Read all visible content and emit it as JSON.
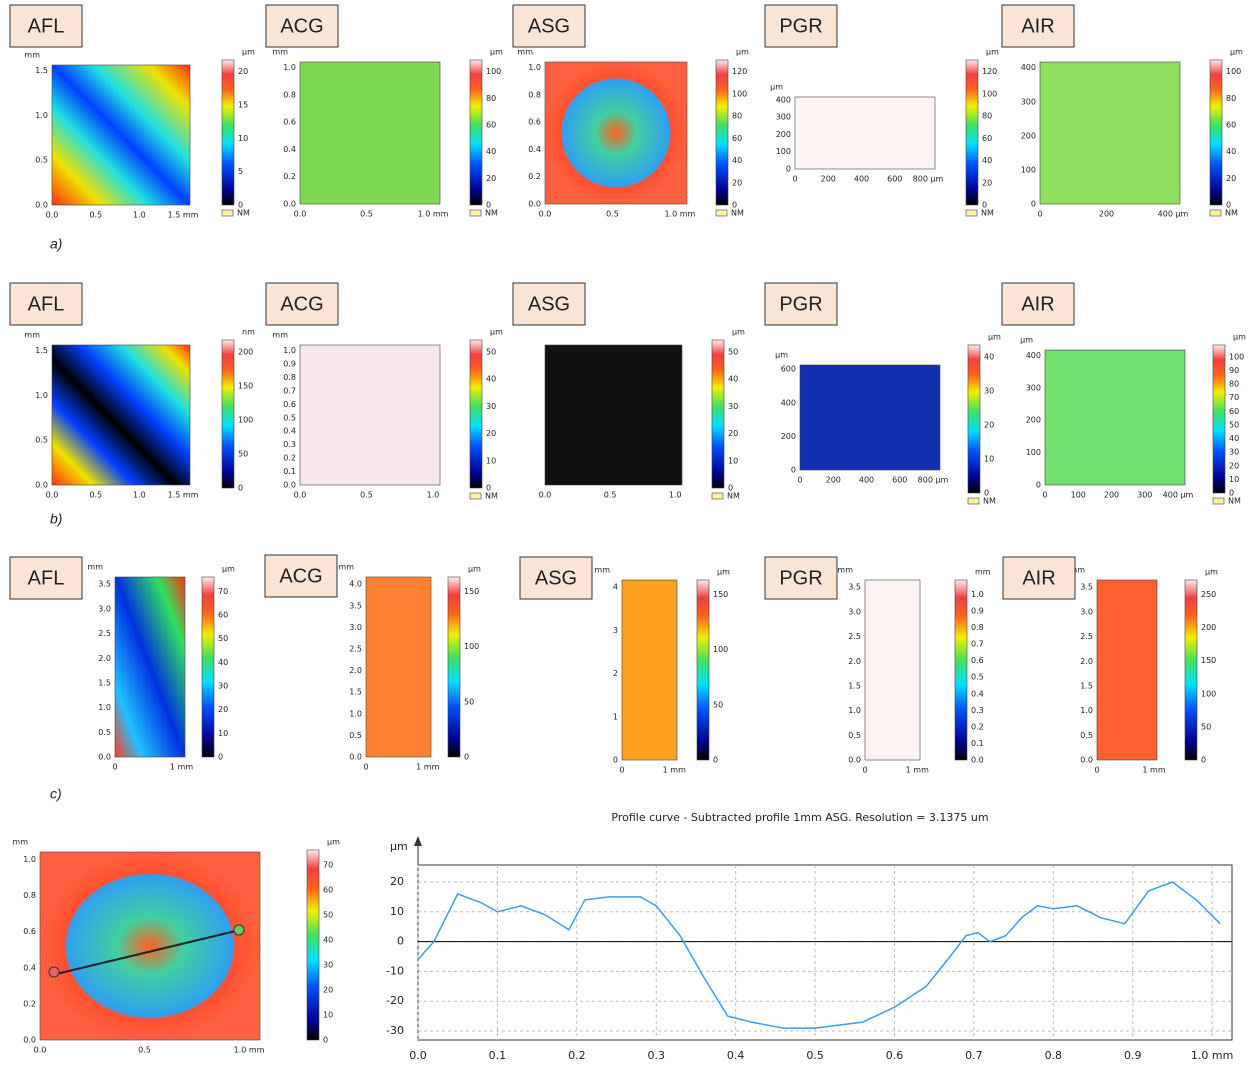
{
  "rows": [
    {
      "label": "a)",
      "panels": [
        {
          "name": "AFL",
          "y_unit": "mm",
          "yticks": [
            "0.0",
            "0.5",
            "1.0",
            "1.5"
          ],
          "xticks": [
            "0.0",
            "0.5",
            "1.0",
            "1.5 mm"
          ],
          "cbar_unit": "µm",
          "cbar_ticks": [
            "0",
            "5",
            "10",
            "15",
            "20"
          ],
          "nm": "NM"
        },
        {
          "name": "ACG",
          "y_unit": "mm",
          "yticks": [
            "0.0",
            "0.2",
            "0.4",
            "0.6",
            "0.8",
            "1.0"
          ],
          "xticks": [
            "0.0",
            "0.5",
            "1.0 mm"
          ],
          "cbar_unit": "µm",
          "cbar_ticks": [
            "0",
            "20",
            "40",
            "60",
            "80",
            "100"
          ],
          "nm": "NM"
        },
        {
          "name": "ASG",
          "y_unit": "mm",
          "yticks": [
            "0.0",
            "0.2",
            "0.4",
            "0.6",
            "0.8",
            "1.0"
          ],
          "xticks": [
            "0.0",
            "0.5",
            "1.0 mm"
          ],
          "cbar_unit": "µm",
          "cbar_ticks": [
            "0",
            "20",
            "40",
            "60",
            "80",
            "100",
            "120"
          ],
          "nm": "NM"
        },
        {
          "name": "PGR",
          "y_unit": "µm",
          "yticks": [
            "0",
            "100",
            "200",
            "300",
            "400"
          ],
          "xticks": [
            "0",
            "200",
            "400",
            "600",
            "800 µm"
          ],
          "cbar_unit": "µm",
          "cbar_ticks": [
            "0",
            "20",
            "40",
            "60",
            "80",
            "100",
            "120"
          ],
          "nm": "NM"
        },
        {
          "name": "AIR",
          "yticks": [
            "0",
            "100",
            "200",
            "300",
            "400"
          ],
          "xticks": [
            "0",
            "200",
            "400 µm"
          ],
          "cbar_unit": "µm",
          "cbar_ticks": [
            "0",
            "20",
            "40",
            "60",
            "80",
            "100"
          ],
          "nm": "NM"
        }
      ]
    },
    {
      "label": "b)",
      "panels": [
        {
          "name": "AFL",
          "y_unit": "mm",
          "yticks": [
            "0.0",
            "0.5",
            "1.0",
            "1.5"
          ],
          "xticks": [
            "0.0",
            "0.5",
            "1.0",
            "1.5 mm"
          ],
          "cbar_unit": "nm",
          "cbar_ticks": [
            "0",
            "50",
            "100",
            "150",
            "200"
          ]
        },
        {
          "name": "ACG",
          "y_unit": "mm",
          "yticks": [
            "0.0",
            "0.1",
            "0.2",
            "0.3",
            "0.4",
            "0.5",
            "0.6",
            "0.7",
            "0.8",
            "0.9",
            "1.0"
          ],
          "xticks": [
            "0.0",
            "0.5",
            "1.0"
          ],
          "cbar_unit": "µm",
          "cbar_ticks": [
            "0",
            "10",
            "20",
            "30",
            "40",
            "50"
          ],
          "nm": "NM"
        },
        {
          "name": "ASG",
          "yticks": [],
          "xticks": [
            "0.0",
            "0.5",
            "1.0"
          ],
          "cbar_unit": "µm",
          "cbar_ticks": [
            "0",
            "10",
            "20",
            "30",
            "40",
            "50"
          ],
          "nm": "NM"
        },
        {
          "name": "PGR",
          "y_unit": "µm",
          "yticks": [
            "0",
            "200",
            "400",
            "600"
          ],
          "xticks": [
            "0",
            "200",
            "400",
            "600",
            "800 µm"
          ],
          "cbar_unit": "µm",
          "cbar_ticks": [
            "0",
            "10",
            "20",
            "30",
            "40"
          ],
          "nm": "NM"
        },
        {
          "name": "AIR",
          "y_unit": "µm",
          "yticks": [
            "0",
            "100",
            "200",
            "300",
            "400"
          ],
          "xticks": [
            "0",
            "100",
            "200",
            "300",
            "400 µm"
          ],
          "cbar_unit": "µm",
          "cbar_ticks": [
            "0",
            "10",
            "20",
            "30",
            "40",
            "50",
            "60",
            "70",
            "80",
            "90",
            "100"
          ],
          "nm": "NM"
        }
      ]
    },
    {
      "label": "c)",
      "panels": [
        {
          "name": "AFL",
          "y_unit": "mm",
          "yticks": [
            "0.0",
            "0.5",
            "1.0",
            "1.5",
            "2.0",
            "2.5",
            "3.0",
            "3.5"
          ],
          "xticks": [
            "0",
            "1 mm"
          ],
          "cbar_unit": "µm",
          "cbar_ticks": [
            "0",
            "10",
            "20",
            "30",
            "40",
            "50",
            "60",
            "70"
          ]
        },
        {
          "name": "ACG",
          "y_unit": "mm",
          "yticks": [
            "0.0",
            "0.5",
            "1.0",
            "1.5",
            "2.0",
            "2.5",
            "3.0",
            "3.5",
            "4.0"
          ],
          "xticks": [
            "0",
            "1 mm"
          ],
          "cbar_unit": "µm",
          "cbar_ticks": [
            "0",
            "50",
            "100",
            "150"
          ]
        },
        {
          "name": "ASG",
          "y_unit": "mm",
          "yticks": [
            "0",
            "1",
            "2",
            "3",
            "4"
          ],
          "xticks": [
            "0",
            "1 mm"
          ],
          "cbar_unit": "µm",
          "cbar_ticks": [
            "0",
            "50",
            "100",
            "150"
          ]
        },
        {
          "name": "PGR",
          "y_unit": "mm",
          "yticks": [
            "0.0",
            "0.5",
            "1.0",
            "1.5",
            "2.0",
            "2.5",
            "3.0",
            "3.5"
          ],
          "xticks": [
            "0",
            "1 mm"
          ],
          "cbar_unit": "mm",
          "cbar_ticks": [
            "0.0",
            "0.1",
            "0.2",
            "0.3",
            "0.4",
            "0.5",
            "0.6",
            "0.7",
            "0.8",
            "0.9",
            "1.0"
          ]
        },
        {
          "name": "AIR",
          "y_unit": "mm",
          "yticks": [
            "0.0",
            "0.5",
            "1.0",
            "1.5",
            "2.0",
            "2.5",
            "3.0",
            "3.5"
          ],
          "xticks": [
            "0",
            "1 mm"
          ],
          "cbar_unit": "µm",
          "cbar_ticks": [
            "0",
            "50",
            "100",
            "150",
            "200",
            "250"
          ]
        }
      ]
    }
  ],
  "map": {
    "y_unit": "mm",
    "yticks": [
      "0.0",
      "0.2",
      "0.4",
      "0.6",
      "0.8",
      "1.0"
    ],
    "xticks": [
      "0.0",
      "0.5",
      "1.0 mm"
    ],
    "cbar_unit": "µm",
    "cbar_ticks": [
      "0",
      "10",
      "20",
      "30",
      "40",
      "50",
      "60",
      "70"
    ]
  },
  "chart_data": {
    "type": "line",
    "title": "Profile curve - Subtracted profile 1mm ASG. Resolution = 3.1375 um",
    "y_label": "µm",
    "color": "#3c9cf0",
    "grid": true,
    "x": [
      0,
      0.02,
      0.05,
      0.08,
      0.1,
      0.13,
      0.16,
      0.19,
      0.21,
      0.24,
      0.28,
      0.3,
      0.33,
      0.36,
      0.39,
      0.42,
      0.46,
      0.5,
      0.53,
      0.56,
      0.6,
      0.64,
      0.67,
      0.69,
      0.705,
      0.72,
      0.74,
      0.76,
      0.78,
      0.8,
      0.83,
      0.86,
      0.89,
      0.92,
      0.95,
      0.98,
      1.01
    ],
    "values": [
      -6,
      0,
      16,
      13,
      10,
      12,
      9,
      4,
      14,
      15,
      15,
      12,
      2,
      -12,
      -25,
      -27,
      -29,
      -29,
      -28,
      -27,
      -22,
      -15,
      -5,
      2,
      3,
      0,
      2,
      8,
      12,
      11,
      12,
      8,
      6,
      17,
      20,
      14,
      6
    ],
    "xlim": [
      0,
      1.025
    ],
    "ylim": [
      -33,
      25.7
    ],
    "yticks": [
      -30,
      -20,
      -10,
      0,
      10,
      20
    ],
    "xticks": [
      {
        "value": 0,
        "label": "0.0"
      },
      {
        "value": 0.1,
        "label": "0.1"
      },
      {
        "value": 0.2,
        "label": "0.2"
      },
      {
        "value": 0.3,
        "label": "0.3"
      },
      {
        "value": 0.4,
        "label": "0.4"
      },
      {
        "value": 0.5,
        "label": "0.5"
      },
      {
        "value": 0.6,
        "label": "0.6"
      },
      {
        "value": 0.7,
        "label": "0.7"
      },
      {
        "value": 0.8,
        "label": "0.8"
      },
      {
        "value": 0.9,
        "label": "0.9"
      },
      {
        "value": 1.0,
        "label": "1.0 mm"
      }
    ]
  }
}
